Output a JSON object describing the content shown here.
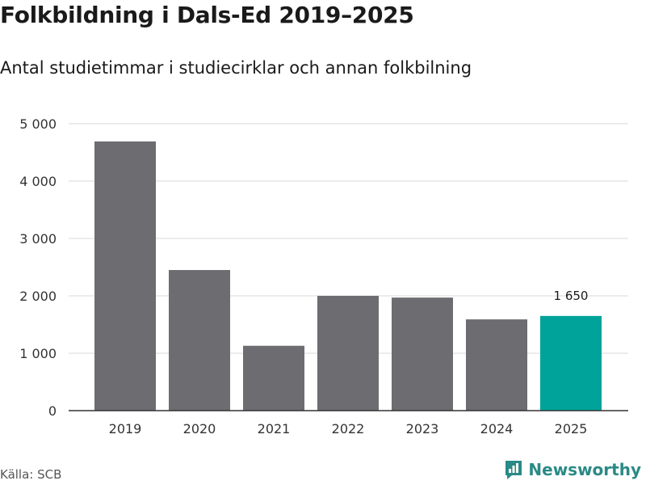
{
  "header": {
    "title": "Folkbildning i Dals-Ed 2019–2025",
    "subtitle": "Antal studietimmar i studiecirklar och annan folkbilning"
  },
  "footer": {
    "source": "Källa: SCB",
    "brand": "Newsworthy"
  },
  "colors": {
    "bar": "#6d6c71",
    "highlight": "#00a39a",
    "grid": "#d9d9d9",
    "axis": "#333333",
    "brand": "#2a8a86"
  },
  "chart_data": {
    "type": "bar",
    "title": "Folkbildning i Dals-Ed 2019–2025",
    "subtitle": "Antal studietimmar i studiecirklar och annan folkbilning",
    "xlabel": "",
    "ylabel": "",
    "categories": [
      "2019",
      "2020",
      "2021",
      "2022",
      "2023",
      "2024",
      "2025"
    ],
    "values": [
      4690,
      2450,
      1130,
      2000,
      1970,
      1590,
      1650
    ],
    "highlight_index": 6,
    "highlight_label": "1 650",
    "ylim": [
      0,
      5000
    ],
    "yticks": [
      0,
      1000,
      2000,
      3000,
      4000,
      5000
    ],
    "ytick_labels": [
      "0",
      "1 000",
      "2 000",
      "3 000",
      "4 000",
      "5 000"
    ],
    "grid": true
  }
}
